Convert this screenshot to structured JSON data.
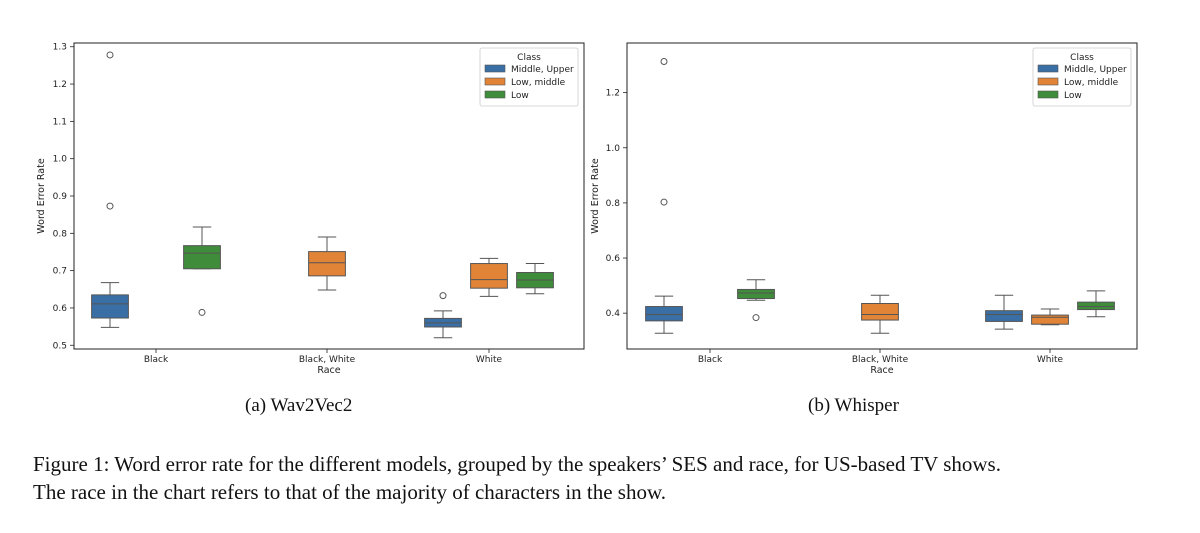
{
  "chart_data": [
    {
      "type": "box",
      "subcaption": "(a) Wav2Vec2",
      "xlabel": "Race",
      "ylabel": "Word Error Rate",
      "ylim": [
        0.49,
        1.31
      ],
      "yticks": [
        0.5,
        0.6,
        0.7,
        0.8,
        0.9,
        1.0,
        1.1,
        1.2,
        1.3
      ],
      "ytick_labels": [
        "0.5",
        "0.6",
        "0.7",
        "0.8",
        "0.9",
        "1.0",
        "1.1",
        "1.2",
        "1.3"
      ],
      "categories": [
        "Black",
        "Black, White",
        "White"
      ],
      "legend": {
        "title": "Class",
        "location": "top-right",
        "entries": [
          {
            "name": "Middle, Upper",
            "color": "#3a6fa5"
          },
          {
            "name": "Low, middle",
            "color": "#e18437"
          },
          {
            "name": "Low",
            "color": "#3f8c3b"
          }
        ]
      },
      "boxes": [
        {
          "category": "Black",
          "class": "Middle, Upper",
          "whislo": 0.548,
          "q1": 0.573,
          "med": 0.611,
          "q3": 0.635,
          "whishi": 0.668,
          "fliers": [
            0.873,
            1.278
          ]
        },
        {
          "category": "Black",
          "class": "Low",
          "whislo": 0.705,
          "q1": 0.705,
          "med": 0.747,
          "q3": 0.767,
          "whishi": 0.817,
          "fliers": [
            0.588
          ]
        },
        {
          "category": "Black, White",
          "class": "Low, middle",
          "whislo": 0.648,
          "q1": 0.686,
          "med": 0.721,
          "q3": 0.751,
          "whishi": 0.79,
          "fliers": []
        },
        {
          "category": "White",
          "class": "Middle, Upper",
          "whislo": 0.52,
          "q1": 0.549,
          "med": 0.56,
          "q3": 0.572,
          "whishi": 0.592,
          "fliers": [
            0.633
          ]
        },
        {
          "category": "White",
          "class": "Low, middle",
          "whislo": 0.631,
          "q1": 0.653,
          "med": 0.676,
          "q3": 0.719,
          "whishi": 0.733,
          "fliers": []
        },
        {
          "category": "White",
          "class": "Low",
          "whislo": 0.638,
          "q1": 0.654,
          "med": 0.675,
          "q3": 0.695,
          "whishi": 0.719,
          "fliers": []
        }
      ]
    },
    {
      "type": "box",
      "subcaption": "(b) Whisper",
      "xlabel": "Race",
      "ylabel": "Word Error Rate",
      "ylim": [
        0.27,
        1.38
      ],
      "yticks": [
        0.4,
        0.6,
        0.8,
        1.0,
        1.2
      ],
      "ytick_labels": [
        "0.4",
        "0.6",
        "0.8",
        "1.0",
        "1.2"
      ],
      "categories": [
        "Black",
        "Black, White",
        "White"
      ],
      "legend": {
        "title": "Class",
        "location": "top-right",
        "entries": [
          {
            "name": "Middle, Upper",
            "color": "#3a6fa5"
          },
          {
            "name": "Low, middle",
            "color": "#e18437"
          },
          {
            "name": "Low",
            "color": "#3f8c3b"
          }
        ]
      },
      "boxes": [
        {
          "category": "Black",
          "class": "Middle, Upper",
          "whislo": 0.327,
          "q1": 0.372,
          "med": 0.395,
          "q3": 0.424,
          "whishi": 0.462,
          "fliers": [
            0.803,
            1.313
          ]
        },
        {
          "category": "Black",
          "class": "Low",
          "whislo": 0.447,
          "q1": 0.453,
          "med": 0.473,
          "q3": 0.486,
          "whishi": 0.521,
          "fliers": [
            0.384
          ]
        },
        {
          "category": "Black, White",
          "class": "Low, middle",
          "whislo": 0.327,
          "q1": 0.375,
          "med": 0.395,
          "q3": 0.435,
          "whishi": 0.465,
          "fliers": []
        },
        {
          "category": "White",
          "class": "Middle, Upper",
          "whislo": 0.342,
          "q1": 0.37,
          "med": 0.395,
          "q3": 0.409,
          "whishi": 0.465,
          "fliers": []
        },
        {
          "category": "White",
          "class": "Low, middle",
          "whislo": 0.358,
          "q1": 0.36,
          "med": 0.385,
          "q3": 0.393,
          "whishi": 0.415,
          "fliers": []
        },
        {
          "category": "White",
          "class": "Low",
          "whislo": 0.387,
          "q1": 0.413,
          "med": 0.424,
          "q3": 0.44,
          "whishi": 0.481,
          "fliers": []
        }
      ]
    }
  ],
  "caption": {
    "line1": "Figure 1: Word error rate for the different models, grouped by the speakers’ SES and race, for US-based TV shows.",
    "line2": "The race in the chart refers to that of the majority of characters in the show."
  }
}
